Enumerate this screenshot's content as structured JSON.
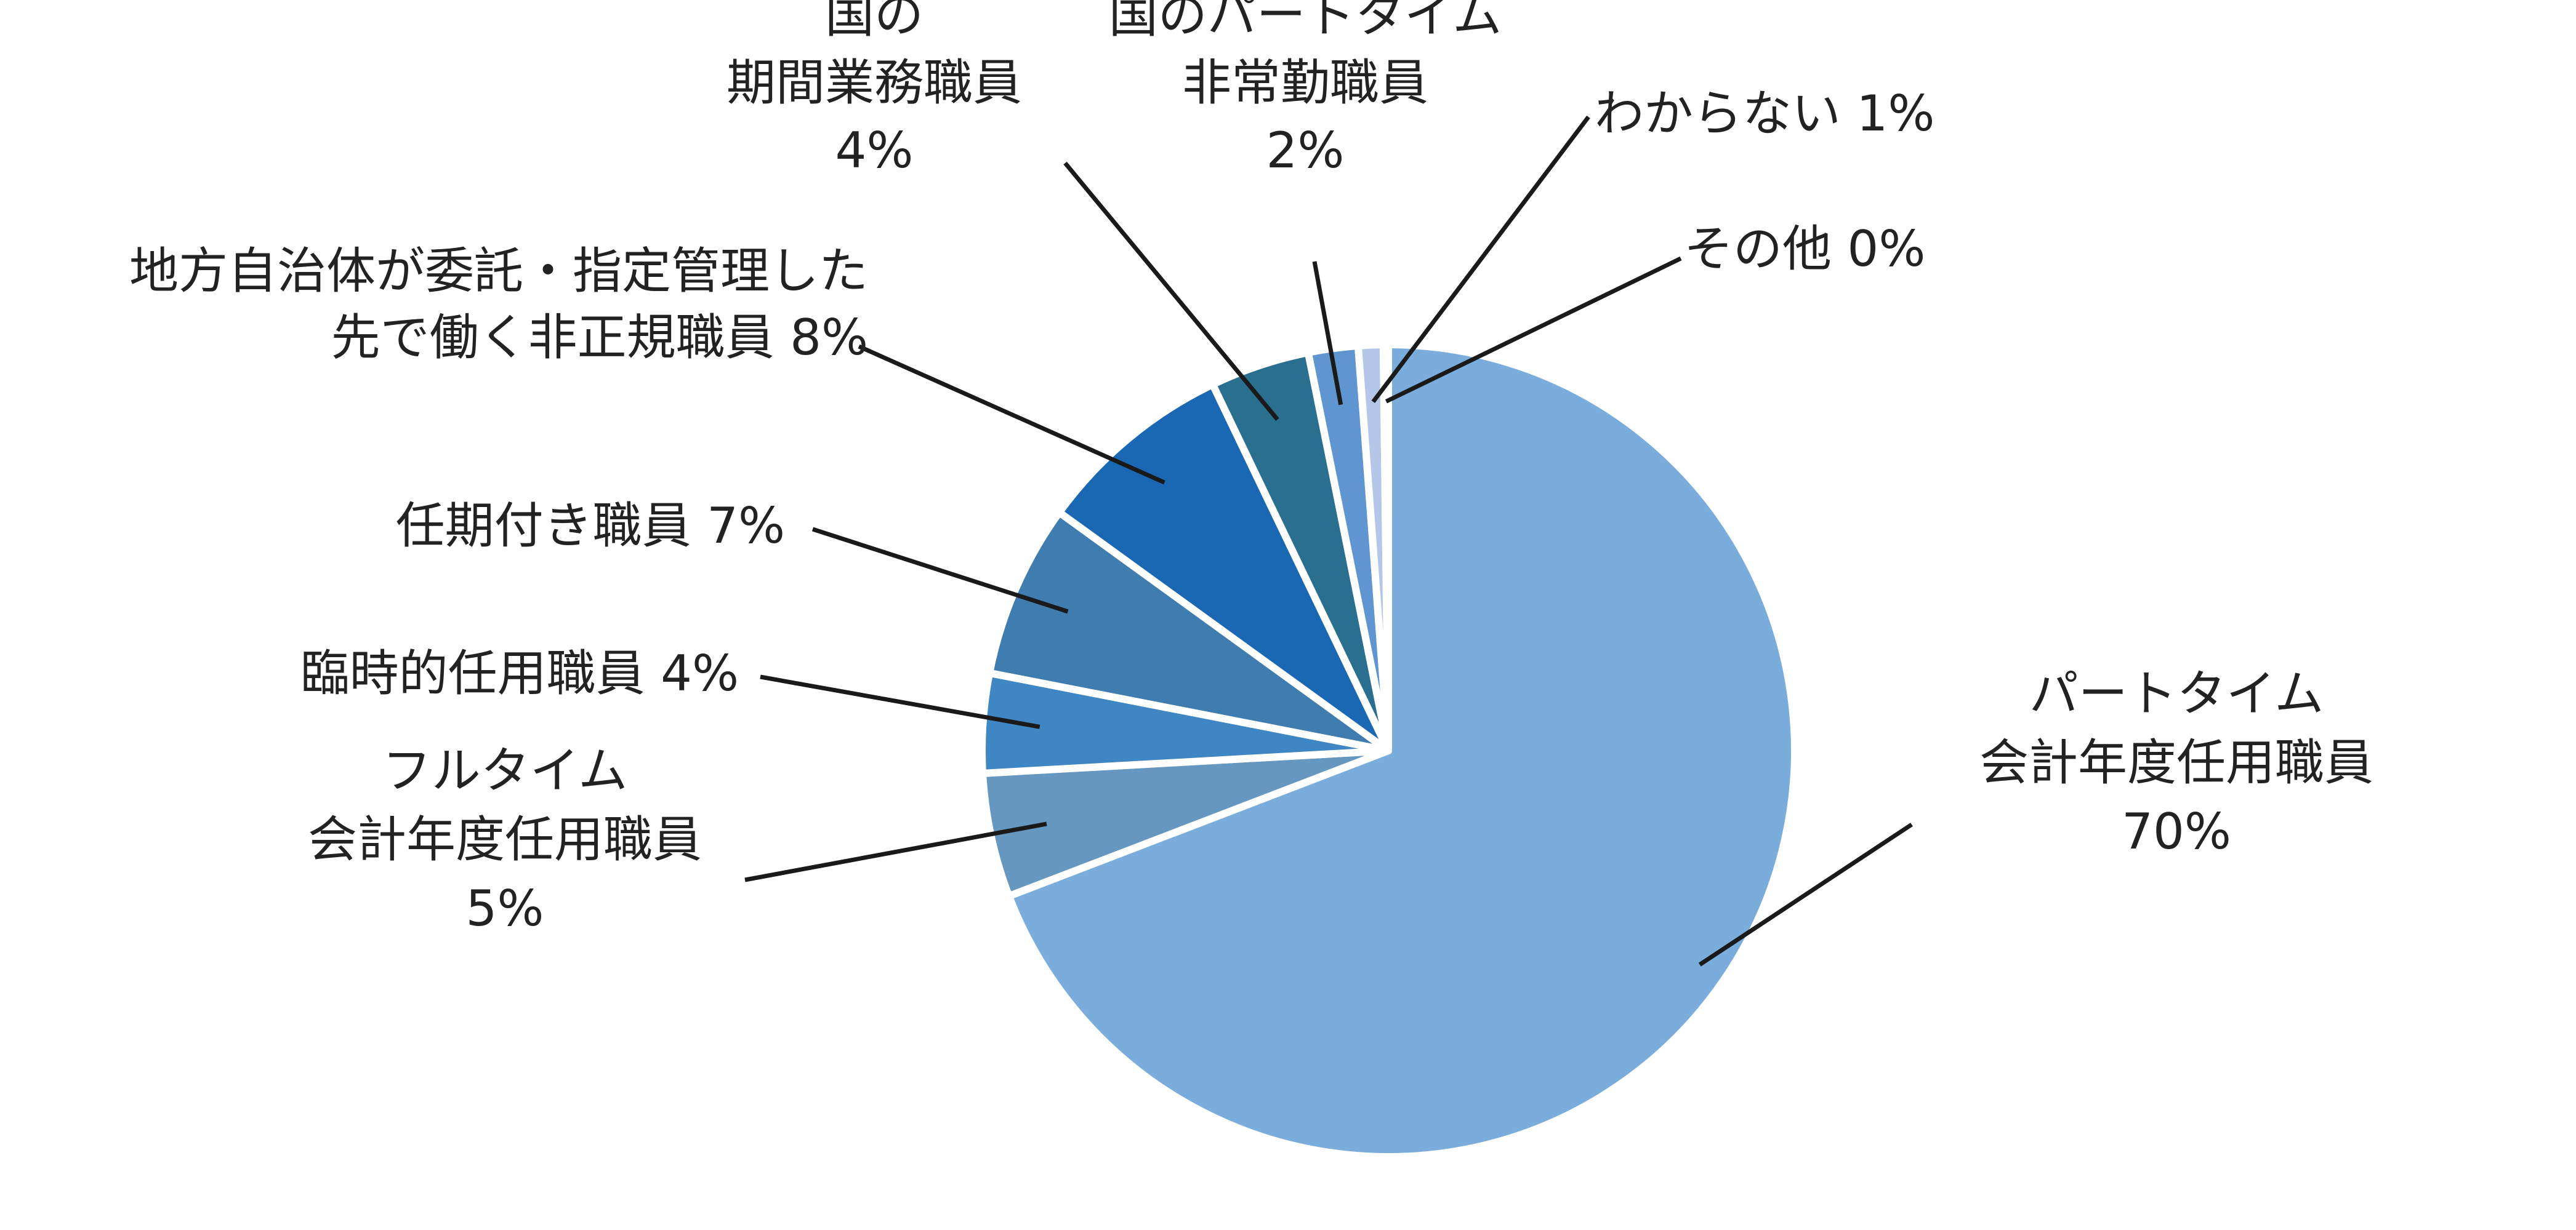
{
  "chart_data": {
    "type": "pie",
    "start": "12 o'clock",
    "direction": "clockwise",
    "slices": [
      {
        "label_lines": [
          "パートタイム",
          "会計年度任用職員",
          "70%"
        ],
        "value": 70,
        "color": "#7aaddc"
      },
      {
        "label_lines": [
          "フルタイム",
          "会計年度任用職員",
          "5%"
        ],
        "value": 5,
        "color": "#6597c0"
      },
      {
        "label_lines": [
          "臨時的任用職員  4%"
        ],
        "value": 4,
        "color": "#3e87c4"
      },
      {
        "label_lines": [
          "任期付き職員  7%"
        ],
        "value": 7,
        "color": "#3f7caf"
      },
      {
        "label_lines": [
          "地方自治体が委託・指定管理した",
          "先で働く非正規職員  8%"
        ],
        "value": 8,
        "color": "#1a68b4"
      },
      {
        "label_lines": [
          "国の",
          "期間業務職員",
          "4%"
        ],
        "value": 4,
        "color": "#2a6f8f"
      },
      {
        "label_lines": [
          "国のパートタイム",
          "非常勤職員",
          "2%"
        ],
        "value": 2,
        "color": "#5f95d0"
      },
      {
        "label_lines": [
          "わからない  1%"
        ],
        "value": 1,
        "color": "#b4c7e8"
      },
      {
        "label_lines": [
          "その他  0%"
        ],
        "value": 0.2,
        "color": "#dfe8f5"
      }
    ]
  }
}
